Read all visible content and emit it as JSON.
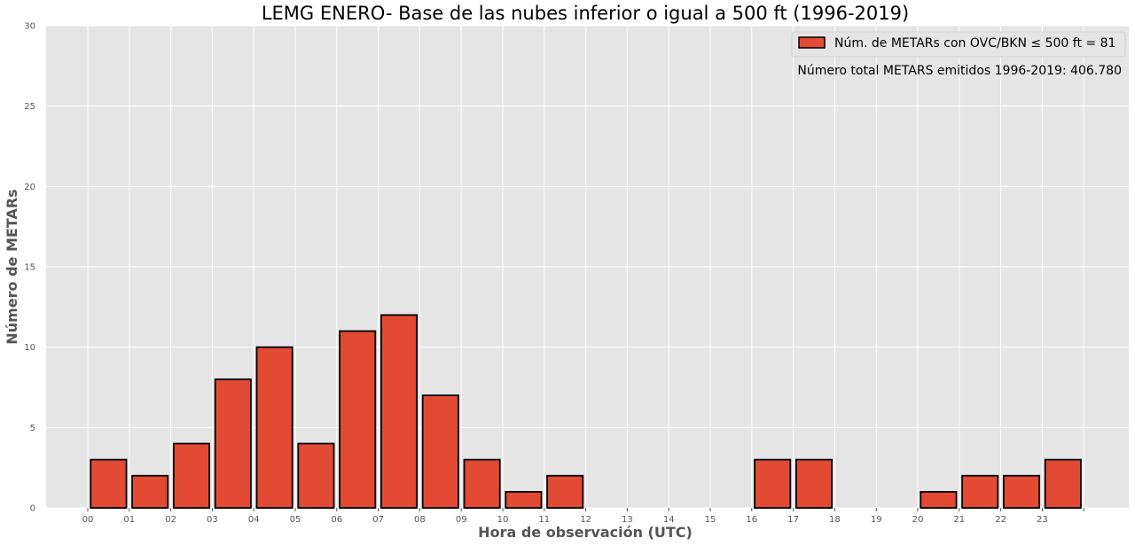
{
  "chart_data": {
    "type": "bar",
    "title": "LEMG ENERO- Base de las nubes inferior o igual a 500 ft (1996-2019)",
    "xlabel": "Hora de observación (UTC)",
    "ylabel": "Número de METARs",
    "categories": [
      "00",
      "01",
      "02",
      "03",
      "04",
      "05",
      "06",
      "07",
      "08",
      "09",
      "10",
      "11",
      "12",
      "13",
      "14",
      "15",
      "16",
      "17",
      "18",
      "19",
      "20",
      "21",
      "22",
      "23"
    ],
    "series": [
      {
        "name": "Núm. de METARs con OVC/BKN ≤ 500 ft = 81",
        "values": [
          3,
          2,
          4,
          8,
          10,
          4,
          11,
          12,
          7,
          3,
          1,
          2,
          0,
          0,
          0,
          0,
          3,
          3,
          0,
          0,
          1,
          2,
          2,
          3
        ]
      }
    ],
    "ylim": [
      0,
      30
    ],
    "yticks": [
      0,
      5,
      10,
      15,
      20,
      25,
      30
    ],
    "grid": true,
    "legend_position": "top-right",
    "annotation": "Número total METARS emitidos 1996-2019:  406.780",
    "colors": {
      "bar_fill": "#E24A33",
      "bar_edge": "#000000",
      "plot_background": "#E5E5E5",
      "grid": "#FFFFFF"
    }
  }
}
